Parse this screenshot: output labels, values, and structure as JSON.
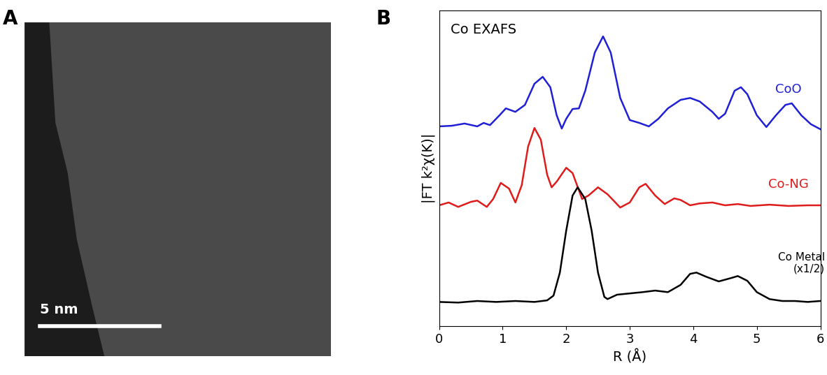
{
  "panel_a": {
    "label": "A",
    "scale_bar": "5 nm"
  },
  "chart_data": {
    "type": "line",
    "panel_label": "B",
    "title": "Co EXAFS",
    "x_label": "R (Å)",
    "y_label": "|FT k²χ(K)|",
    "xlim": [
      0,
      6
    ],
    "xticks": [
      0,
      1,
      2,
      3,
      4,
      5,
      6
    ],
    "ylim": [
      0,
      10
    ],
    "yticks": [],
    "tick_labels": "x",
    "grid": false,
    "series": [
      {
        "name": "CoO",
        "color": "#1f1fd6",
        "x": [
          0,
          0.2,
          0.4,
          0.6,
          0.7,
          0.8,
          0.95,
          1.05,
          1.2,
          1.35,
          1.5,
          1.63,
          1.75,
          1.85,
          1.93,
          2.0,
          2.1,
          2.2,
          2.3,
          2.45,
          2.58,
          2.7,
          2.85,
          3.0,
          3.15,
          3.3,
          3.45,
          3.6,
          3.8,
          3.95,
          4.1,
          4.3,
          4.4,
          4.5,
          4.65,
          4.75,
          4.85,
          5.0,
          5.15,
          5.3,
          5.45,
          5.55,
          5.7,
          5.85,
          6.0
        ],
        "values": [
          6.33,
          6.35,
          6.42,
          6.33,
          6.44,
          6.37,
          6.68,
          6.9,
          6.79,
          7.01,
          7.68,
          7.9,
          7.57,
          6.68,
          6.26,
          6.57,
          6.88,
          6.9,
          7.46,
          8.67,
          9.18,
          8.67,
          7.23,
          6.53,
          6.44,
          6.33,
          6.57,
          6.9,
          7.17,
          7.23,
          7.12,
          6.79,
          6.57,
          6.73,
          7.46,
          7.57,
          7.35,
          6.68,
          6.31,
          6.68,
          7.01,
          7.06,
          6.68,
          6.4,
          6.24
        ]
      },
      {
        "name": "Co-NG",
        "color": "#e01b1b",
        "x": [
          0,
          0.15,
          0.3,
          0.5,
          0.6,
          0.75,
          0.85,
          0.97,
          1.1,
          1.2,
          1.3,
          1.4,
          1.5,
          1.6,
          1.7,
          1.77,
          1.85,
          2.0,
          2.1,
          2.25,
          2.35,
          2.5,
          2.65,
          2.85,
          3.0,
          3.15,
          3.25,
          3.4,
          3.55,
          3.7,
          3.8,
          3.95,
          4.1,
          4.3,
          4.5,
          4.7,
          4.9,
          5.2,
          5.5,
          5.8,
          6.0
        ],
        "values": [
          3.83,
          3.92,
          3.78,
          3.94,
          3.98,
          3.78,
          4.03,
          4.54,
          4.36,
          3.92,
          4.47,
          5.69,
          6.28,
          5.91,
          4.8,
          4.4,
          4.58,
          5.02,
          4.85,
          4.03,
          4.14,
          4.4,
          4.18,
          3.76,
          3.92,
          4.4,
          4.51,
          4.14,
          3.87,
          4.05,
          4.0,
          3.83,
          3.89,
          3.92,
          3.83,
          3.87,
          3.81,
          3.85,
          3.81,
          3.83,
          3.83
        ]
      },
      {
        "name": "Co Metal",
        "note": "(x1/2)",
        "color": "#000000",
        "x": [
          0,
          0.3,
          0.6,
          0.9,
          1.2,
          1.5,
          1.7,
          1.8,
          1.9,
          2.0,
          2.1,
          2.18,
          2.3,
          2.4,
          2.5,
          2.6,
          2.65,
          2.8,
          3.0,
          3.2,
          3.4,
          3.6,
          3.8,
          3.95,
          4.05,
          4.2,
          4.4,
          4.6,
          4.7,
          4.85,
          5.0,
          5.2,
          5.4,
          5.6,
          5.8,
          6.0
        ],
        "values": [
          0.77,
          0.75,
          0.8,
          0.77,
          0.8,
          0.77,
          0.82,
          0.97,
          1.7,
          3.03,
          4.14,
          4.4,
          4.03,
          3.03,
          1.7,
          0.93,
          0.86,
          1.0,
          1.04,
          1.08,
          1.13,
          1.08,
          1.31,
          1.66,
          1.7,
          1.57,
          1.42,
          1.53,
          1.59,
          1.44,
          1.08,
          0.86,
          0.8,
          0.8,
          0.77,
          0.8
        ]
      }
    ]
  }
}
